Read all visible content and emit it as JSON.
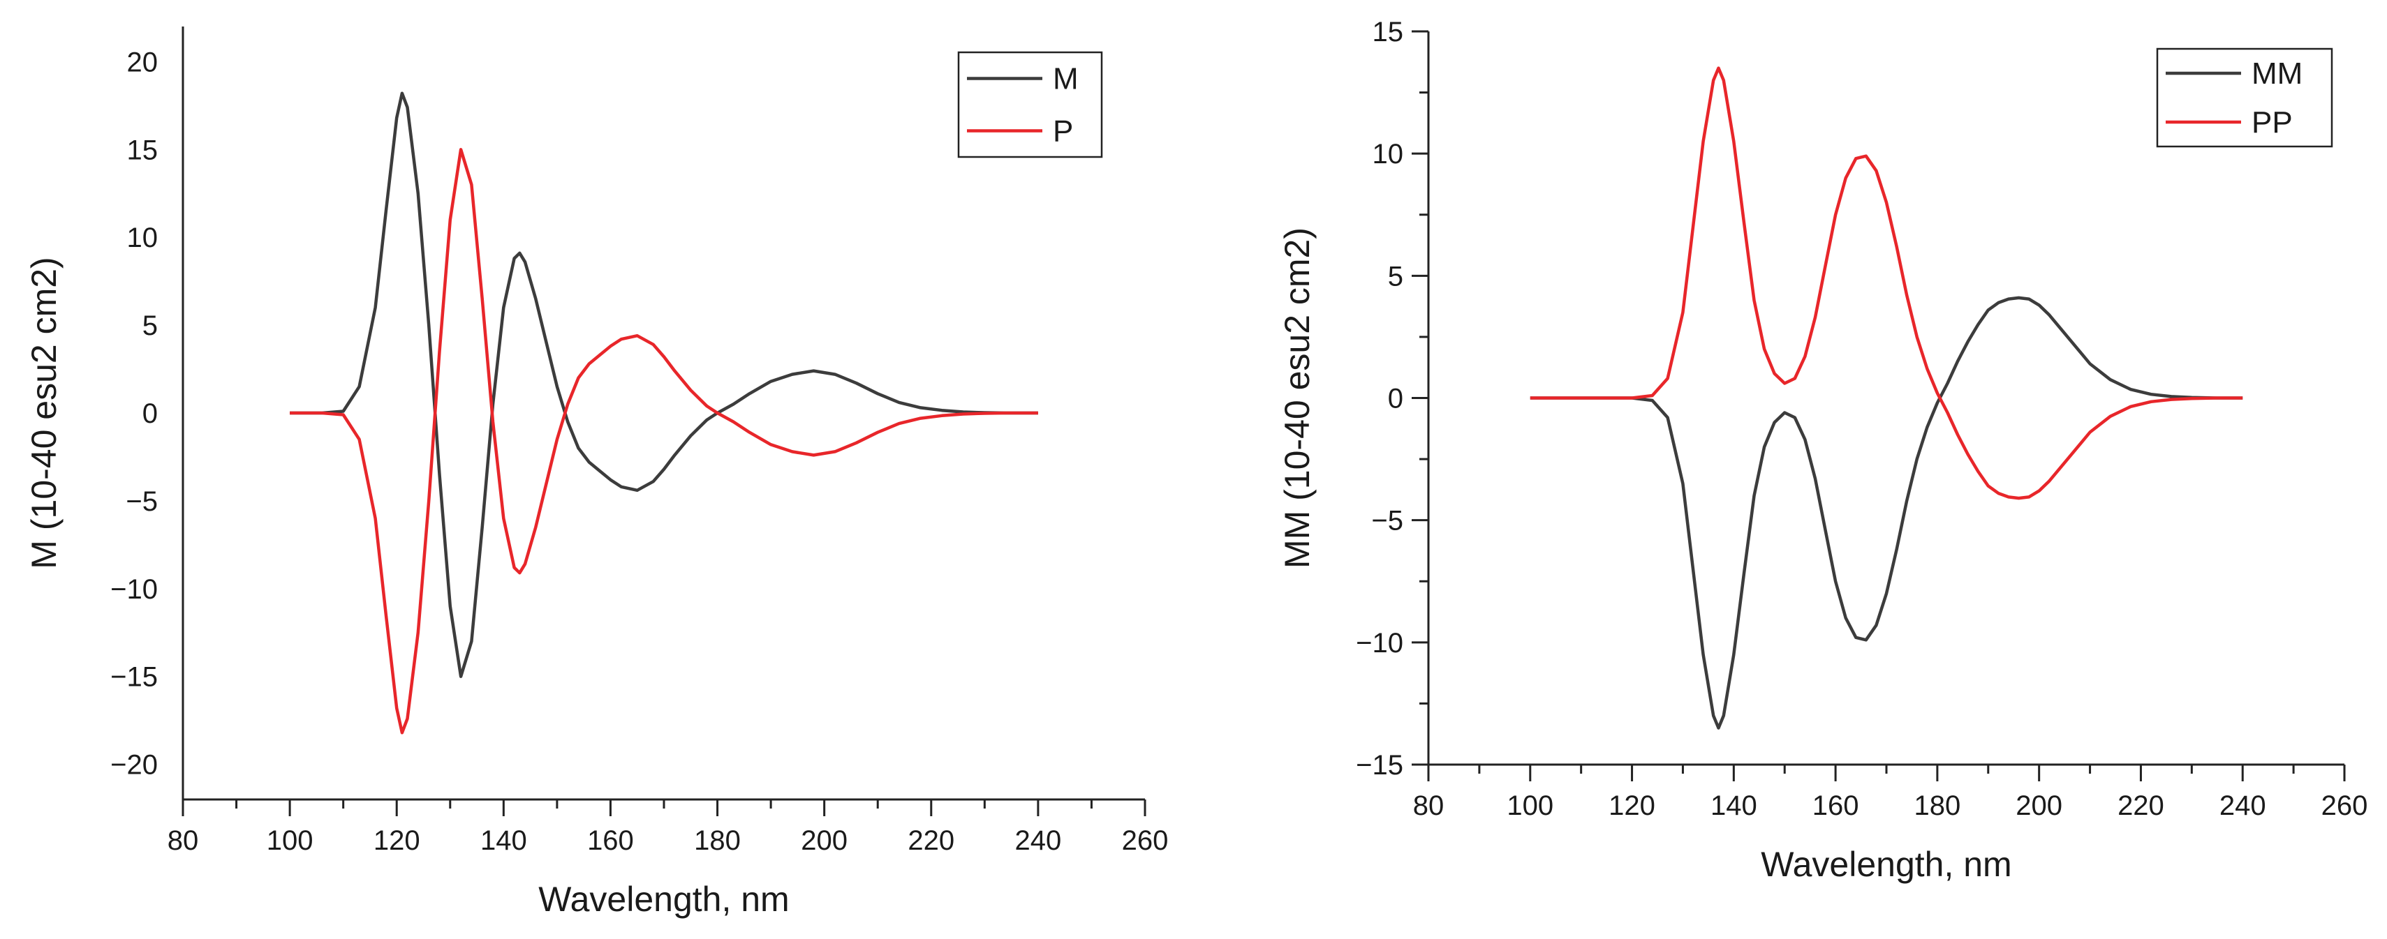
{
  "chart_data": [
    {
      "type": "line",
      "title": "",
      "xlabel": "Wavelength, nm",
      "ylabel": "M (10-40 esu2 cm2)",
      "xlim": [
        80,
        260
      ],
      "ylim": [
        -22,
        22
      ],
      "xticks": [
        80,
        100,
        120,
        140,
        160,
        180,
        200,
        220,
        240,
        260
      ],
      "yticks": [
        -20,
        -15,
        -10,
        -5,
        0,
        5,
        10,
        15,
        20
      ],
      "grid": false,
      "legend": "top-right",
      "series": [
        {
          "name": "M",
          "color": "#3c3c3c",
          "x": [
            100,
            106,
            110,
            113,
            116,
            118,
            120,
            121,
            122,
            124,
            126,
            128,
            130,
            132,
            134,
            136,
            138,
            140,
            142,
            143,
            144,
            146,
            148,
            150,
            152,
            154,
            156,
            158,
            160,
            162,
            165,
            168,
            170,
            172,
            175,
            178,
            180,
            183,
            186,
            190,
            194,
            198,
            202,
            206,
            210,
            214,
            218,
            222,
            226,
            230,
            234,
            240
          ],
          "y": [
            0,
            0,
            0.1,
            1.5,
            6,
            11.5,
            16.8,
            18.2,
            17.4,
            12.5,
            5,
            -3.5,
            -11,
            -15,
            -13,
            -6.5,
            0.5,
            6,
            8.8,
            9.1,
            8.6,
            6.5,
            4,
            1.5,
            -0.5,
            -2,
            -2.8,
            -3.3,
            -3.8,
            -4.2,
            -4.4,
            -3.9,
            -3.2,
            -2.4,
            -1.3,
            -0.4,
            0,
            0.5,
            1.1,
            1.8,
            2.2,
            2.4,
            2.2,
            1.7,
            1.1,
            0.6,
            0.3,
            0.15,
            0.06,
            0.02,
            0,
            0
          ]
        },
        {
          "name": "P",
          "color": "#e8262a",
          "x": [
            100,
            106,
            110,
            113,
            116,
            118,
            120,
            121,
            122,
            124,
            126,
            128,
            130,
            132,
            134,
            136,
            138,
            140,
            142,
            143,
            144,
            146,
            148,
            150,
            152,
            154,
            156,
            158,
            160,
            162,
            165,
            168,
            170,
            172,
            175,
            178,
            180,
            183,
            186,
            190,
            194,
            198,
            202,
            206,
            210,
            214,
            218,
            222,
            226,
            230,
            234,
            240
          ],
          "y": [
            0,
            0,
            -0.1,
            -1.5,
            -6,
            -11.5,
            -16.8,
            -18.2,
            -17.4,
            -12.5,
            -5,
            3.5,
            11,
            15,
            13,
            6.5,
            -0.5,
            -6,
            -8.8,
            -9.1,
            -8.6,
            -6.5,
            -4,
            -1.5,
            0.5,
            2,
            2.8,
            3.3,
            3.8,
            4.2,
            4.4,
            3.9,
            3.2,
            2.4,
            1.3,
            0.4,
            0,
            -0.5,
            -1.1,
            -1.8,
            -2.2,
            -2.4,
            -2.2,
            -1.7,
            -1.1,
            -0.6,
            -0.3,
            -0.15,
            -0.06,
            -0.02,
            0,
            0
          ]
        }
      ]
    },
    {
      "type": "line",
      "title": "",
      "xlabel": "Wavelength, nm",
      "ylabel": "MM (10-40 esu2 cm2)",
      "xlim": [
        80,
        260
      ],
      "ylim": [
        -15,
        15
      ],
      "xticks": [
        80,
        100,
        120,
        140,
        160,
        180,
        200,
        220,
        240,
        260
      ],
      "yticks": [
        -15,
        -10,
        -5,
        0,
        5,
        10,
        15
      ],
      "grid": false,
      "legend": "top-right",
      "series": [
        {
          "name": "MM",
          "color": "#3c3c3c",
          "x": [
            100,
            110,
            120,
            124,
            127,
            130,
            132,
            134,
            136,
            137,
            138,
            140,
            142,
            144,
            146,
            148,
            150,
            152,
            154,
            156,
            158,
            160,
            162,
            164,
            166,
            168,
            170,
            172,
            174,
            176,
            178,
            180,
            182,
            184,
            186,
            188,
            190,
            192,
            194,
            196,
            198,
            200,
            202,
            204,
            206,
            208,
            210,
            214,
            218,
            222,
            226,
            230,
            235,
            240
          ],
          "y": [
            0,
            0,
            0,
            -0.1,
            -0.8,
            -3.5,
            -7,
            -10.5,
            -13,
            -13.5,
            -13,
            -10.5,
            -7.2,
            -4,
            -2,
            -1,
            -0.6,
            -0.8,
            -1.7,
            -3.3,
            -5.4,
            -7.5,
            -9,
            -9.8,
            -9.9,
            -9.3,
            -8,
            -6.2,
            -4.2,
            -2.5,
            -1.2,
            -0.2,
            0.6,
            1.5,
            2.3,
            3,
            3.6,
            3.9,
            4.05,
            4.1,
            4.05,
            3.8,
            3.4,
            2.9,
            2.4,
            1.9,
            1.4,
            0.75,
            0.35,
            0.15,
            0.06,
            0.02,
            0,
            0
          ]
        },
        {
          "name": "PP",
          "color": "#e8262a",
          "x": [
            100,
            110,
            120,
            124,
            127,
            130,
            132,
            134,
            136,
            137,
            138,
            140,
            142,
            144,
            146,
            148,
            150,
            152,
            154,
            156,
            158,
            160,
            162,
            164,
            166,
            168,
            170,
            172,
            174,
            176,
            178,
            180,
            182,
            184,
            186,
            188,
            190,
            192,
            194,
            196,
            198,
            200,
            202,
            204,
            206,
            208,
            210,
            214,
            218,
            222,
            226,
            230,
            235,
            240
          ],
          "y": [
            0,
            0,
            0,
            0.1,
            0.8,
            3.5,
            7,
            10.5,
            13,
            13.5,
            13,
            10.5,
            7.2,
            4,
            2,
            1,
            0.6,
            0.8,
            1.7,
            3.3,
            5.4,
            7.5,
            9,
            9.8,
            9.9,
            9.3,
            8,
            6.2,
            4.2,
            2.5,
            1.2,
            0.2,
            -0.6,
            -1.5,
            -2.3,
            -3,
            -3.6,
            -3.9,
            -4.05,
            -4.1,
            -4.05,
            -3.8,
            -3.4,
            -2.9,
            -2.4,
            -1.9,
            -1.4,
            -0.75,
            -0.35,
            -0.15,
            -0.06,
            -0.02,
            0,
            0
          ]
        }
      ]
    }
  ]
}
